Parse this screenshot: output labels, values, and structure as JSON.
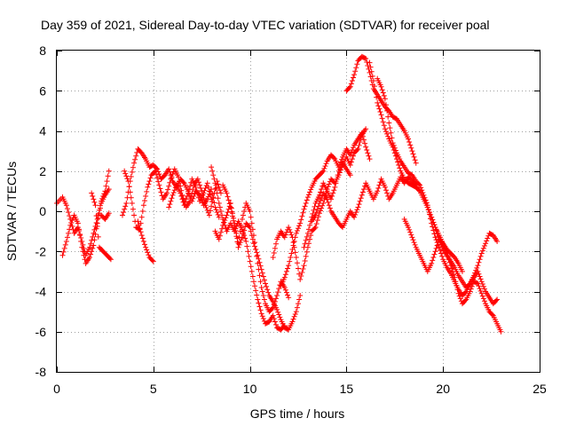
{
  "chart_data": {
    "type": "scatter",
    "title": "Day 359 of 2021, Sidereal Day-to-day VTEC variation (SDTVAR) for receiver poal",
    "xlabel": "GPS time / hours",
    "ylabel": "SDTVAR / TECUs",
    "xlim": [
      0,
      25
    ],
    "ylim": [
      -8,
      8
    ],
    "xticks": [
      0,
      5,
      10,
      15,
      20,
      25
    ],
    "yticks": [
      -8,
      -6,
      -4,
      -2,
      0,
      2,
      4,
      6,
      8
    ],
    "grid": true,
    "marker": "+",
    "color": "#ff0000",
    "series": [
      {
        "name": "trace-1",
        "x": [
          0.0,
          0.3,
          0.5,
          0.7,
          0.9,
          1.1,
          1.3,
          1.5,
          1.7,
          1.9,
          2.1,
          2.3,
          2.5,
          2.7
        ],
        "y": [
          0.4,
          0.7,
          0.3,
          -0.4,
          -1.1,
          -0.8,
          -1.5,
          -2.2,
          -1.8,
          -1.1,
          -0.4,
          0.5,
          1.0,
          2.0
        ]
      },
      {
        "name": "trace-2",
        "x": [
          0.3,
          0.5,
          0.7,
          0.9,
          1.1,
          1.3,
          1.5,
          1.7,
          1.9,
          2.1,
          2.3,
          2.5,
          2.7
        ],
        "y": [
          -2.2,
          -1.5,
          -0.7,
          -0.2,
          -0.6,
          -1.8,
          -2.6,
          -2.3,
          -1.7,
          -0.6,
          0.4,
          0.8,
          1.1
        ]
      },
      {
        "name": "trace-3",
        "x": [
          1.8,
          2.0,
          2.2,
          2.4,
          2.6,
          2.8
        ],
        "y": [
          0.9,
          0.3,
          -1.8,
          -2.0,
          -2.2,
          -2.4
        ]
      },
      {
        "name": "trace-4",
        "x": [
          2.3,
          2.5,
          2.7
        ],
        "y": [
          -0.2,
          -0.4,
          -0.1
        ]
      },
      {
        "name": "trace-5",
        "x": [
          3.4,
          3.6,
          3.8,
          4.0,
          4.2,
          4.4,
          4.6,
          4.8,
          5.0,
          5.2,
          5.4,
          5.6,
          5.8,
          6.0,
          6.2,
          6.4,
          6.6,
          6.8,
          7.0,
          7.2,
          7.4,
          7.6,
          7.8,
          8.0,
          8.2,
          8.4
        ],
        "y": [
          -0.2,
          0.4,
          1.5,
          2.4,
          3.1,
          2.9,
          2.6,
          2.2,
          2.3,
          2.1,
          1.6,
          1.8,
          2.1,
          1.5,
          1.2,
          1.6,
          1.4,
          1.0,
          0.5,
          1.0,
          0.8,
          0.3,
          0.6,
          1.1,
          0.2,
          -0.3
        ]
      },
      {
        "name": "trace-6",
        "x": [
          3.5,
          3.7,
          3.9,
          4.1,
          4.3,
          4.5,
          4.7,
          4.9,
          5.1,
          5.3,
          5.5,
          5.7,
          5.9,
          6.1,
          6.3,
          6.5,
          6.7,
          6.9,
          7.1,
          7.3,
          7.5,
          7.7,
          7.9,
          8.1,
          8.3,
          8.5
        ],
        "y": [
          2.0,
          1.5,
          0.4,
          -0.8,
          -0.9,
          0.3,
          1.2,
          1.8,
          2.0,
          1.3,
          0.6,
          0.9,
          1.6,
          2.1,
          1.7,
          0.8,
          0.2,
          0.5,
          1.3,
          1.6,
          1.0,
          0.3,
          -0.2,
          0.7,
          1.5,
          0.9
        ]
      },
      {
        "name": "trace-7",
        "x": [
          4.2,
          4.4,
          4.6,
          4.8,
          5.0
        ],
        "y": [
          -0.5,
          -1.2,
          -1.8,
          -2.3,
          -2.5
        ]
      },
      {
        "name": "trace-8",
        "x": [
          5.8,
          6.0,
          6.2,
          6.4,
          6.6,
          6.8,
          7.0,
          7.2,
          7.4,
          7.6,
          7.8,
          8.0
        ],
        "y": [
          0.2,
          0.8,
          1.3,
          0.9,
          0.3,
          0.9,
          1.6,
          1.2,
          0.5,
          0.9,
          1.4,
          0.6
        ]
      },
      {
        "name": "trace-9",
        "x": [
          8.0,
          8.2,
          8.4,
          8.6,
          8.8,
          9.0,
          9.2,
          9.4,
          9.6,
          9.8,
          10.0,
          10.2,
          10.4,
          10.6,
          10.8,
          11.0,
          11.2,
          11.4,
          11.6,
          11.8
        ],
        "y": [
          2.2,
          1.4,
          0.4,
          -0.4,
          -1.0,
          -0.6,
          -1.0,
          -0.5,
          -0.9,
          -1.5,
          -2.5,
          -3.5,
          -4.4,
          -5.1,
          -5.6,
          -5.5,
          -5.2,
          -5.8,
          -5.9,
          -5.7
        ]
      },
      {
        "name": "trace-10",
        "x": [
          8.2,
          8.4,
          8.6,
          8.8,
          9.0,
          9.2,
          9.4,
          9.6,
          9.8,
          10.0,
          10.2,
          10.4,
          10.6,
          10.8,
          11.0,
          11.2,
          11.4,
          11.6,
          11.8,
          12.0
        ],
        "y": [
          -1.0,
          -1.4,
          -0.7,
          -0.2,
          0.4,
          -0.6,
          -1.6,
          -0.4,
          0.4,
          0.0,
          -1.2,
          -2.6,
          -3.8,
          -4.6,
          -5.0,
          -4.8,
          -4.2,
          -3.5,
          -3.8,
          -4.3
        ]
      },
      {
        "name": "trace-11",
        "x": [
          8.6,
          8.8,
          9.0,
          9.2,
          9.4,
          9.6,
          9.8,
          10.0,
          10.2,
          10.4,
          10.6,
          10.8,
          11.0,
          11.2,
          11.4,
          11.6,
          11.8,
          12.0,
          12.2,
          12.4,
          12.6
        ],
        "y": [
          1.3,
          0.9,
          0.2,
          -0.7,
          -1.8,
          -1.3,
          -0.6,
          -0.8,
          -1.6,
          -2.2,
          -2.9,
          -3.6,
          -4.2,
          -4.5,
          -4.9,
          -5.4,
          -5.8,
          -5.9,
          -5.5,
          -5.0,
          -4.2
        ]
      },
      {
        "name": "trace-12",
        "x": [
          11.2,
          11.4,
          11.6,
          11.8,
          12.0,
          12.2,
          12.4,
          12.6,
          12.8,
          13.0,
          13.2,
          13.4,
          13.6,
          13.8,
          14.0,
          14.2,
          14.4,
          14.6,
          14.8,
          15.0,
          15.2,
          15.4,
          15.6,
          15.8,
          16.0
        ],
        "y": [
          -2.3,
          -1.4,
          -1.0,
          -1.3,
          -0.8,
          -1.3,
          -2.3,
          -3.4,
          -2.7,
          -1.8,
          -1.0,
          -0.8,
          -0.1,
          0.4,
          1.1,
          1.6,
          1.4,
          1.8,
          2.3,
          2.7,
          2.3,
          2.9,
          3.1,
          3.8,
          4.1
        ]
      },
      {
        "name": "trace-13",
        "x": [
          11.6,
          11.8,
          12.0,
          12.2,
          12.4,
          12.6,
          12.8,
          13.0,
          13.2,
          13.4,
          13.6,
          13.8,
          14.0,
          14.2,
          14.4,
          14.6,
          14.8,
          15.0,
          15.2,
          15.4,
          15.6,
          15.8,
          16.0,
          16.2
        ],
        "y": [
          -3.7,
          -3.3,
          -2.7,
          -1.9,
          -1.1,
          -0.6,
          0.1,
          0.7,
          1.2,
          1.6,
          1.8,
          2.0,
          2.5,
          2.8,
          2.6,
          2.2,
          2.7,
          3.1,
          2.8,
          3.3,
          3.6,
          3.9,
          3.2,
          2.6
        ]
      },
      {
        "name": "trace-14",
        "x": [
          12.8,
          13.0,
          13.2,
          13.4,
          13.6,
          13.8,
          14.0,
          14.2,
          14.4,
          14.6,
          14.8,
          15.0,
          15.2
        ],
        "y": [
          -1.8,
          -1.1,
          -0.3,
          0.4,
          0.8,
          1.4,
          1.0,
          0.6,
          1.2,
          2.0,
          2.4,
          2.1,
          1.8
        ]
      },
      {
        "name": "trace-15",
        "x": [
          13.2,
          13.4,
          13.6,
          13.8,
          14.0,
          14.2,
          14.4,
          14.6,
          14.8,
          15.0,
          15.2,
          15.4,
          15.6,
          15.8,
          16.0,
          16.2,
          16.4,
          16.6,
          16.8,
          17.0,
          17.2,
          17.4,
          17.6,
          17.8,
          18.0,
          18.2,
          18.4,
          18.6
        ],
        "y": [
          -0.5,
          -0.2,
          0.4,
          0.9,
          0.6,
          0.0,
          -0.3,
          -0.6,
          -0.8,
          -0.4,
          0.0,
          -0.3,
          0.2,
          0.8,
          1.4,
          1.0,
          0.6,
          1.0,
          1.6,
          1.2,
          0.6,
          0.9,
          1.3,
          1.7,
          1.4,
          1.7,
          1.5,
          1.3
        ]
      },
      {
        "name": "trace-16",
        "x": [
          15.0,
          15.2,
          15.4,
          15.6,
          15.8,
          16.0,
          16.2,
          16.4,
          16.6,
          16.8,
          17.0,
          17.2,
          17.4,
          17.6,
          17.8,
          18.0,
          18.2,
          18.4,
          18.6
        ],
        "y": [
          6.0,
          6.2,
          6.8,
          7.5,
          7.7,
          7.6,
          6.9,
          6.1,
          5.8,
          5.5,
          5.2,
          5.0,
          4.7,
          4.6,
          4.3,
          4.0,
          3.6,
          3.0,
          2.4
        ]
      },
      {
        "name": "trace-17",
        "x": [
          16.2,
          16.4,
          16.6,
          16.8,
          17.0,
          17.2,
          17.4,
          17.6,
          17.8,
          18.0,
          18.2,
          18.4,
          18.6,
          18.8,
          19.0,
          19.2,
          19.4,
          19.6,
          19.8,
          20.0,
          20.2,
          20.4,
          20.6,
          20.8,
          21.0
        ],
        "y": [
          7.4,
          6.5,
          5.4,
          4.8,
          4.1,
          3.6,
          3.2,
          2.6,
          2.0,
          1.6,
          1.4,
          1.3,
          1.2,
          1.0,
          0.6,
          0.2,
          -0.3,
          -0.8,
          -1.2,
          -1.6,
          -1.9,
          -2.1,
          -2.3,
          -2.6,
          -3.0
        ]
      },
      {
        "name": "trace-18",
        "x": [
          16.6,
          16.8,
          17.0,
          17.2,
          17.4,
          17.6,
          17.8,
          18.0,
          18.2,
          18.4,
          18.6,
          18.8,
          19.0,
          19.2,
          19.4,
          19.6,
          19.8,
          20.0,
          20.2,
          20.4,
          20.6,
          20.8,
          21.0,
          21.2,
          21.4,
          21.6,
          21.8,
          22.0,
          22.2,
          22.4,
          22.6,
          22.8
        ],
        "y": [
          6.6,
          6.2,
          5.6,
          4.4,
          3.4,
          2.9,
          2.5,
          2.2,
          1.9,
          1.8,
          1.5,
          1.3,
          0.8,
          0.3,
          -0.6,
          -1.3,
          -1.8,
          -2.4,
          -2.8,
          -3.1,
          -3.5,
          -3.9,
          -4.2,
          -4.0,
          -3.6,
          -3.2,
          -2.7,
          -2.1,
          -1.6,
          -1.1,
          -1.2,
          -1.5
        ]
      },
      {
        "name": "trace-19",
        "x": [
          18.0,
          18.2,
          18.4,
          18.6,
          18.8,
          19.0,
          19.2,
          19.4,
          19.6,
          19.8,
          20.0,
          20.2,
          20.4,
          20.6,
          20.8,
          21.0,
          21.2,
          21.4,
          21.6,
          21.8,
          22.0,
          22.2,
          22.4,
          22.6,
          22.8,
          23.0
        ],
        "y": [
          -0.4,
          -0.8,
          -1.3,
          -1.8,
          -2.2,
          -2.6,
          -3.0,
          -2.6,
          -2.0,
          -1.4,
          -1.6,
          -2.1,
          -2.7,
          -3.3,
          -4.1,
          -4.6,
          -4.4,
          -4.0,
          -3.5,
          -3.6,
          -4.1,
          -4.6,
          -5.0,
          -5.2,
          -5.6,
          -6.0
        ]
      },
      {
        "name": "trace-20",
        "x": [
          19.2,
          19.4,
          19.6,
          19.8,
          20.0,
          20.2,
          20.4,
          20.6,
          20.8,
          21.0,
          21.2,
          21.4,
          21.6,
          21.8,
          22.0,
          22.2,
          22.4,
          22.6,
          22.8
        ],
        "y": [
          0.2,
          -0.3,
          -0.8,
          -1.4,
          -1.9,
          -2.2,
          -2.5,
          -2.8,
          -3.2,
          -3.5,
          -3.8,
          -3.6,
          -3.3,
          -3.0,
          -3.5,
          -4.0,
          -4.3,
          -4.6,
          -4.4
        ]
      }
    ]
  }
}
